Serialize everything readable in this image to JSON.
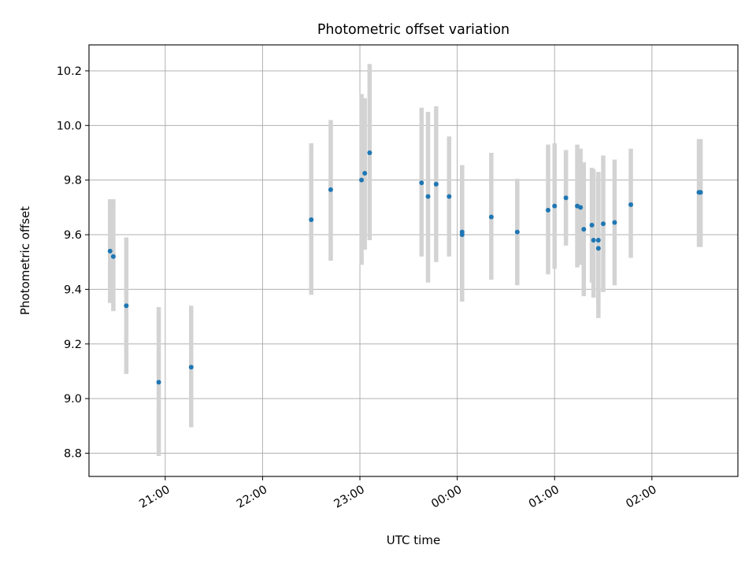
{
  "chart_data": {
    "type": "scatter",
    "title": "Photometric offset variation",
    "xlabel": "UTC time",
    "ylabel": "Photometric offset",
    "x_axis": "time",
    "xlim": [
      "20:13",
      "02:53"
    ],
    "ylim": [
      8.715,
      10.295
    ],
    "xticks": [
      "21:00",
      "22:00",
      "23:00",
      "00:00",
      "01:00",
      "02:00"
    ],
    "yticks": [
      8.8,
      9.0,
      9.2,
      9.4,
      9.6,
      9.8,
      10.0,
      10.2
    ],
    "grid": true,
    "legend": "none",
    "colors": {
      "point": "#1f77b4",
      "errorbar": "#d3d3d3",
      "grid": "#b0b0b0"
    },
    "points": [
      {
        "x": "20:26",
        "y": 9.54,
        "ylow": 9.35,
        "yhigh": 9.73
      },
      {
        "x": "20:28",
        "y": 9.52,
        "ylow": 9.32,
        "yhigh": 9.73
      },
      {
        "x": "20:36",
        "y": 9.34,
        "ylow": 9.09,
        "yhigh": 9.59
      },
      {
        "x": "20:56",
        "y": 9.06,
        "ylow": 8.79,
        "yhigh": 9.335
      },
      {
        "x": "21:16",
        "y": 9.115,
        "ylow": 8.895,
        "yhigh": 9.34
      },
      {
        "x": "22:30",
        "y": 9.655,
        "ylow": 9.38,
        "yhigh": 9.935
      },
      {
        "x": "22:42",
        "y": 9.765,
        "ylow": 9.505,
        "yhigh": 10.02
      },
      {
        "x": "23:01",
        "y": 9.8,
        "ylow": 9.49,
        "yhigh": 10.115
      },
      {
        "x": "23:03",
        "y": 9.825,
        "ylow": 9.545,
        "yhigh": 10.1
      },
      {
        "x": "23:06",
        "y": 9.9,
        "ylow": 9.58,
        "yhigh": 10.225
      },
      {
        "x": "23:38",
        "y": 9.79,
        "ylow": 9.52,
        "yhigh": 10.065
      },
      {
        "x": "23:42",
        "y": 9.74,
        "ylow": 9.425,
        "yhigh": 10.05
      },
      {
        "x": "23:47",
        "y": 9.785,
        "ylow": 9.5,
        "yhigh": 10.07
      },
      {
        "x": "23:55",
        "y": 9.74,
        "ylow": 9.52,
        "yhigh": 9.96
      },
      {
        "x": "00:03",
        "y": 9.61,
        "ylow": 9.355,
        "yhigh": 9.855
      },
      {
        "x": "00:03",
        "y": 9.6,
        "ylow": 9.4,
        "yhigh": 9.8
      },
      {
        "x": "00:21",
        "y": 9.665,
        "ylow": 9.435,
        "yhigh": 9.9
      },
      {
        "x": "00:37",
        "y": 9.61,
        "ylow": 9.415,
        "yhigh": 9.805
      },
      {
        "x": "00:56",
        "y": 9.69,
        "ylow": 9.455,
        "yhigh": 9.93
      },
      {
        "x": "01:00",
        "y": 9.705,
        "ylow": 9.475,
        "yhigh": 9.935
      },
      {
        "x": "01:07",
        "y": 9.735,
        "ylow": 9.56,
        "yhigh": 9.91
      },
      {
        "x": "01:14",
        "y": 9.705,
        "ylow": 9.48,
        "yhigh": 9.93
      },
      {
        "x": "01:16",
        "y": 9.7,
        "ylow": 9.49,
        "yhigh": 9.915
      },
      {
        "x": "01:18",
        "y": 9.62,
        "ylow": 9.375,
        "yhigh": 9.865
      },
      {
        "x": "01:23",
        "y": 9.635,
        "ylow": 9.425,
        "yhigh": 9.845
      },
      {
        "x": "01:24",
        "y": 9.58,
        "ylow": 9.37,
        "yhigh": 9.84
      },
      {
        "x": "01:27",
        "y": 9.58,
        "ylow": 9.33,
        "yhigh": 9.83
      },
      {
        "x": "01:27",
        "y": 9.55,
        "ylow": 9.295,
        "yhigh": 9.805
      },
      {
        "x": "01:30",
        "y": 9.64,
        "ylow": 9.39,
        "yhigh": 9.89
      },
      {
        "x": "01:37",
        "y": 9.645,
        "ylow": 9.415,
        "yhigh": 9.875
      },
      {
        "x": "01:47",
        "y": 9.71,
        "ylow": 9.515,
        "yhigh": 9.915
      },
      {
        "x": "02:29",
        "y": 9.755,
        "ylow": 9.555,
        "yhigh": 9.95
      },
      {
        "x": "02:30",
        "y": 9.755,
        "ylow": 9.555,
        "yhigh": 9.95
      }
    ]
  }
}
